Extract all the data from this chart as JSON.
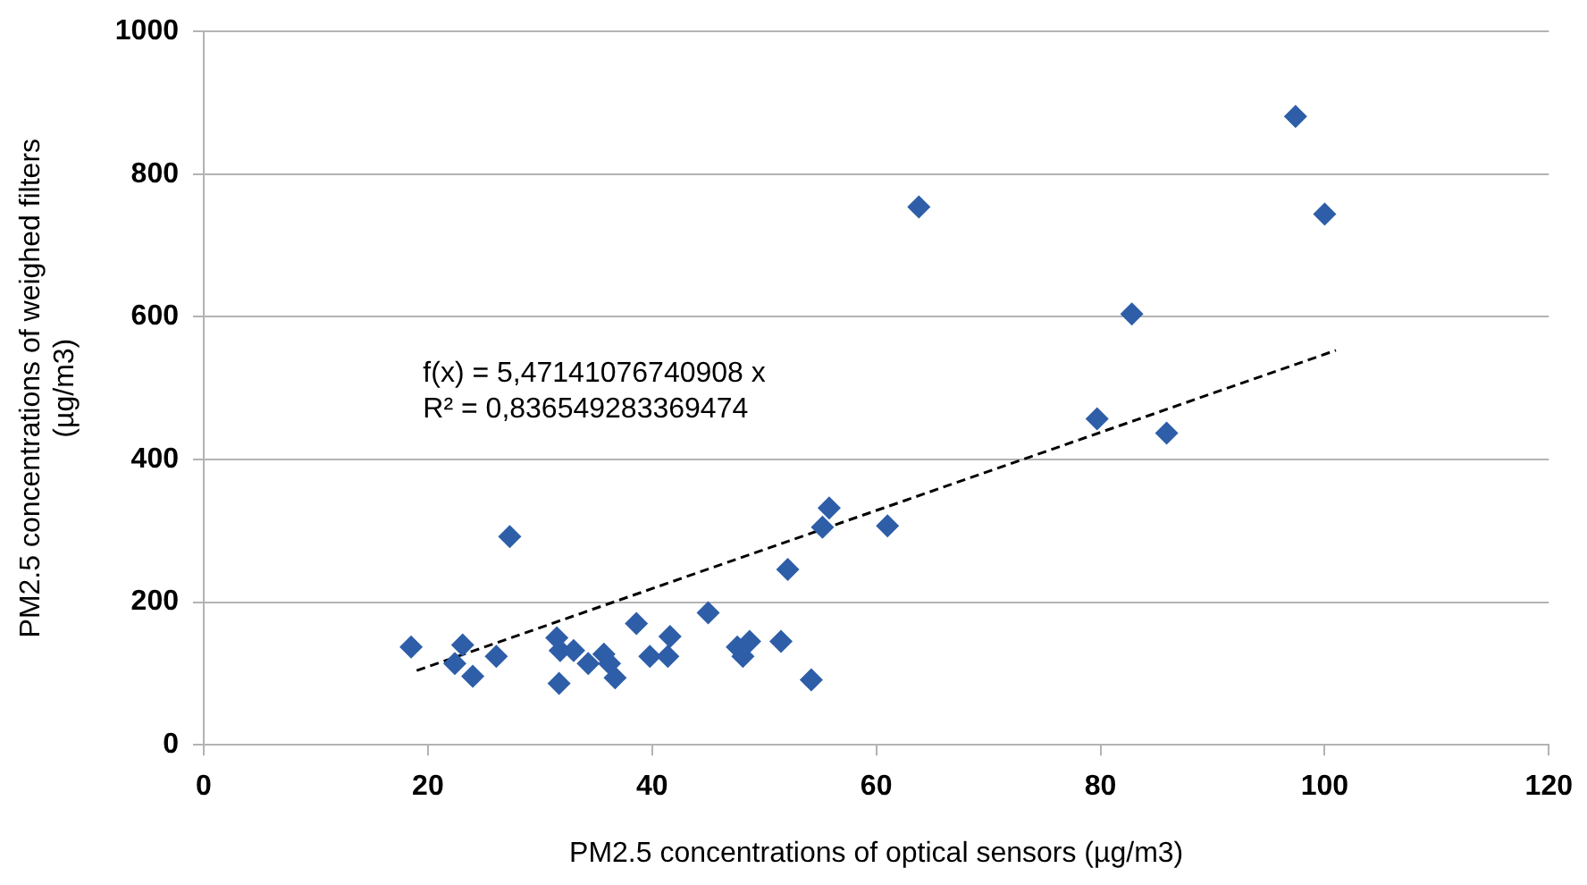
{
  "chart_data": {
    "type": "scatter",
    "xlabel": "PM2.5 concentrations of optical sensors (µg/m3)",
    "ylabel": "PM2.5 concentrations of weighed filters\n(µg/m3)",
    "annotations": [
      "f(x) = 5,47141076740908 x",
      "R² = 0,836549283369474"
    ],
    "xlim": [
      0,
      120
    ],
    "xticks": [
      0,
      20,
      40,
      60,
      80,
      100,
      120
    ],
    "ylim": [
      0,
      1000
    ],
    "yticks": [
      0,
      200,
      400,
      600,
      800,
      1000
    ],
    "grid": "y",
    "legend": false,
    "series": [
      {
        "type": "scatter",
        "color": "#2e5ea8",
        "marker": "diamond",
        "x": [
          18.5,
          23.1,
          22.4,
          24.0,
          26.1,
          27.3,
          31.5,
          31.7,
          31.8,
          33,
          34.3,
          35.7,
          36.7,
          36.2,
          38.6,
          39.8,
          41.4,
          41.6,
          45,
          47.6,
          48.7,
          48.1,
          51.5,
          54.2,
          52.1,
          55.2,
          55.8,
          61.0,
          63.8,
          79.7,
          82.8,
          85.9,
          97.4,
          100
        ],
        "values": [
          137,
          140,
          114,
          96,
          124,
          292,
          150,
          86,
          132,
          132,
          114,
          127,
          94,
          114,
          170,
          124,
          124,
          152,
          185,
          137,
          145,
          124,
          145,
          91,
          246,
          305,
          332,
          307,
          754,
          457,
          604,
          437,
          881,
          744
        ]
      },
      {
        "type": "line",
        "color": "#000000",
        "line_style": "dashed",
        "marker": "none",
        "x": [
          19,
          101
        ],
        "values": [
          104,
          553
        ]
      }
    ]
  }
}
